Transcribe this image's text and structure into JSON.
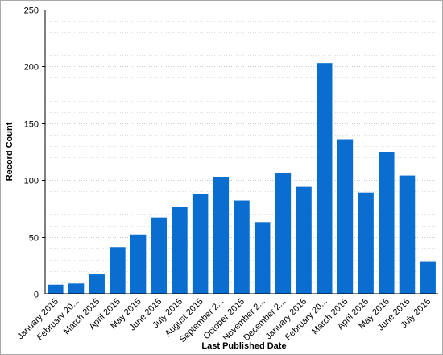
{
  "chart_data": {
    "type": "bar",
    "xlabel": "Last Published Date",
    "ylabel": "Record Count",
    "ylim": [
      0,
      250
    ],
    "yticks": [
      0,
      50,
      100,
      150,
      200,
      250
    ],
    "grid": "horizontal dotted",
    "bar_color": "#0a6ed1",
    "categories": [
      "January 2015",
      "February 20...",
      "March 2015",
      "April 2015",
      "May 2015",
      "June 2015",
      "July 2015",
      "August 2015",
      "September 2...",
      "October 2015",
      "November 2...",
      "December 2...",
      "January 2016",
      "February 20...",
      "March 2016",
      "April 2016",
      "May 2016",
      "June 2016",
      "July 2016"
    ],
    "values": [
      8,
      9,
      17,
      41,
      52,
      67,
      76,
      88,
      103,
      82,
      63,
      106,
      94,
      203,
      136,
      89,
      125,
      104,
      28
    ]
  }
}
